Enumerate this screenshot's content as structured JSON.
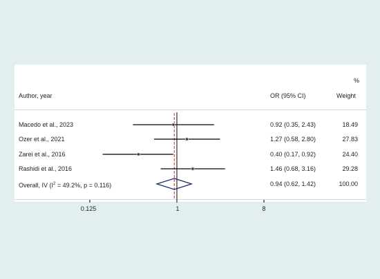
{
  "header": {
    "study_col": "Author, year",
    "ci_col": "OR (95% CI)",
    "weight_col_top": "%",
    "weight_col": "Weight"
  },
  "rows": [
    {
      "label": "Macedo et al., 2023",
      "ci_text": "0.92 (0.35, 2.43)",
      "weight_text": "18.49"
    },
    {
      "label": "Ozer et al., 2021",
      "ci_text": "1.27 (0.58, 2.80)",
      "weight_text": "27.83"
    },
    {
      "label": "Zarei et al., 2016",
      "ci_text": "0.40 (0.17, 0.92)",
      "weight_text": "24.40"
    },
    {
      "label": "Rashidi  et  al., 2016",
      "ci_text": "1.46 (0.68, 3.16)",
      "weight_text": "29.28"
    }
  ],
  "overall": {
    "label_pre": "Overall, IV (I",
    "label_sup": "2",
    "label_post": " = 49.2%, p = 0.116)",
    "ci_text": "0.94 (0.62, 1.42)",
    "weight_text": "100.00"
  },
  "chart_data": {
    "type": "forest",
    "scale": "log",
    "x_ticks": [
      0.125,
      1,
      8
    ],
    "x_tick_labels": [
      "0.125",
      "1",
      "8"
    ],
    "null_line": 1,
    "studies": [
      {
        "label": "Macedo et al., 2023",
        "or": 0.92,
        "lo": 0.35,
        "hi": 2.43,
        "weight": 18.49
      },
      {
        "label": "Ozer et al., 2021",
        "or": 1.27,
        "lo": 0.58,
        "hi": 2.8,
        "weight": 27.83
      },
      {
        "label": "Zarei et al., 2016",
        "or": 0.4,
        "lo": 0.17,
        "hi": 0.92,
        "weight": 24.4
      },
      {
        "label": "Rashidi  et  al., 2016",
        "or": 1.46,
        "lo": 0.68,
        "hi": 3.16,
        "weight": 29.28
      }
    ],
    "overall": {
      "or": 0.94,
      "lo": 0.62,
      "hi": 1.42,
      "weight": 100.0,
      "i2": 49.2,
      "p": 0.116
    },
    "colors": {
      "background": "#e3eeee",
      "panel": "#ffffff",
      "ci_line": "#000000",
      "point": "#333333",
      "diamond": "#1a2a6c",
      "pooled_line": "#d62728",
      "null_line": "#000000"
    }
  }
}
